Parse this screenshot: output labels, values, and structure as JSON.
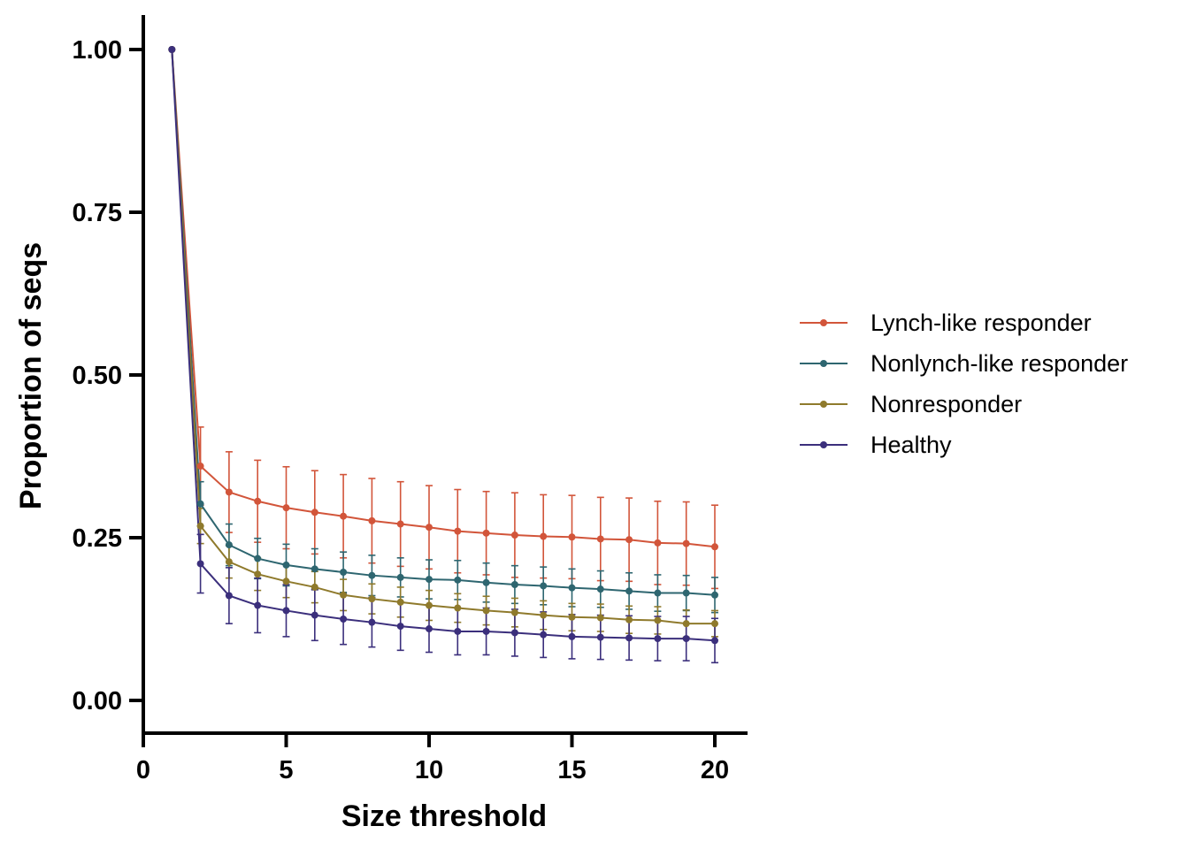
{
  "chart_data": {
    "type": "line",
    "title": "",
    "xlabel": "Size threshold",
    "ylabel": "Proportion of seqs",
    "xlim": [
      0,
      21
    ],
    "ylim": [
      -0.05,
      1.05
    ],
    "xticks": [
      0,
      5,
      10,
      15,
      20
    ],
    "xtick_labels": [
      "0",
      "5",
      "10",
      "15",
      "20"
    ],
    "yticks": [
      0,
      0.25,
      0.5,
      0.75,
      1.0
    ],
    "ytick_labels": [
      "0.00",
      "0.25",
      "0.50",
      "0.75",
      "1.00"
    ],
    "legend_position": "right",
    "grid": false,
    "x": [
      1,
      2,
      3,
      4,
      5,
      6,
      7,
      8,
      9,
      10,
      11,
      12,
      13,
      14,
      15,
      16,
      17,
      18,
      19,
      20
    ],
    "series": [
      {
        "name": "Lynch-like responder",
        "color": "#D2553A",
        "values": [
          1.0,
          0.36,
          0.32,
          0.306,
          0.296,
          0.289,
          0.283,
          0.276,
          0.271,
          0.266,
          0.26,
          0.257,
          0.254,
          0.252,
          0.251,
          0.248,
          0.247,
          0.242,
          0.241,
          0.236
        ],
        "error": [
          0,
          0.06,
          0.062,
          0.063,
          0.063,
          0.064,
          0.064,
          0.065,
          0.065,
          0.064,
          0.064,
          0.064,
          0.065,
          0.064,
          0.064,
          0.064,
          0.064,
          0.064,
          0.064,
          0.064
        ]
      },
      {
        "name": "Nonlynch-like responder",
        "color": "#2E6670",
        "values": [
          1.0,
          0.302,
          0.239,
          0.218,
          0.208,
          0.202,
          0.197,
          0.192,
          0.189,
          0.186,
          0.185,
          0.181,
          0.178,
          0.176,
          0.173,
          0.171,
          0.168,
          0.165,
          0.165,
          0.162
        ],
        "error": [
          0,
          0.034,
          0.032,
          0.031,
          0.032,
          0.031,
          0.031,
          0.031,
          0.03,
          0.03,
          0.03,
          0.03,
          0.029,
          0.029,
          0.029,
          0.028,
          0.028,
          0.028,
          0.027,
          0.027
        ]
      },
      {
        "name": "Nonresponder",
        "color": "#8F7A2C",
        "values": [
          1.0,
          0.268,
          0.213,
          0.194,
          0.183,
          0.174,
          0.162,
          0.156,
          0.151,
          0.146,
          0.142,
          0.138,
          0.135,
          0.131,
          0.128,
          0.127,
          0.124,
          0.123,
          0.118,
          0.118
        ],
        "error": [
          0,
          0.027,
          0.025,
          0.025,
          0.025,
          0.024,
          0.024,
          0.023,
          0.023,
          0.023,
          0.022,
          0.022,
          0.022,
          0.022,
          0.021,
          0.021,
          0.021,
          0.021,
          0.021,
          0.02
        ]
      },
      {
        "name": "Healthy",
        "color": "#3B2F7C",
        "values": [
          1.0,
          0.21,
          0.161,
          0.146,
          0.138,
          0.131,
          0.125,
          0.12,
          0.114,
          0.11,
          0.106,
          0.106,
          0.104,
          0.101,
          0.098,
          0.097,
          0.096,
          0.095,
          0.095,
          0.092
        ],
        "error": [
          0,
          0.045,
          0.043,
          0.042,
          0.04,
          0.039,
          0.039,
          0.038,
          0.037,
          0.036,
          0.036,
          0.036,
          0.036,
          0.035,
          0.034,
          0.034,
          0.034,
          0.034,
          0.034,
          0.034
        ]
      }
    ]
  }
}
